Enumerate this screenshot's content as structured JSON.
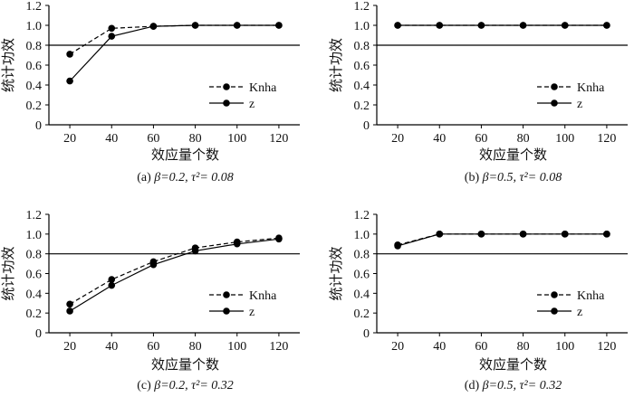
{
  "figure": {
    "x_categories_note": "effect size count",
    "panels_count": 4
  },
  "chart_data": [
    {
      "type": "line",
      "caption_prefix": "(a) ",
      "caption_beta": "β=0.2, ",
      "caption_tau": "τ²= 0.08",
      "xlabel": "效应量个数",
      "ylabel": "统计功效",
      "x": [
        20,
        40,
        60,
        80,
        100,
        120
      ],
      "xlim": [
        10,
        130
      ],
      "ylim": [
        0,
        1.2
      ],
      "yticks": [
        "0",
        "0.2",
        "0.4",
        "0.6",
        "0.8",
        "1.0",
        "1.2"
      ],
      "xticks": [
        "20",
        "40",
        "60",
        "80",
        "100",
        "120"
      ],
      "reference_line": 0.8,
      "legend_position": "lower-right",
      "series": [
        {
          "name": "Knha",
          "style": "dashed",
          "values": [
            0.71,
            0.97,
            0.99,
            1.0,
            1.0,
            1.0
          ]
        },
        {
          "name": "z",
          "style": "solid",
          "values": [
            0.44,
            0.89,
            0.99,
            1.0,
            1.0,
            1.0
          ]
        }
      ]
    },
    {
      "type": "line",
      "caption_prefix": "(b) ",
      "caption_beta": "β=0.5, ",
      "caption_tau": "τ²= 0.08",
      "xlabel": "效应量个数",
      "ylabel": "统计功效",
      "x": [
        20,
        40,
        60,
        80,
        100,
        120
      ],
      "xlim": [
        10,
        130
      ],
      "ylim": [
        0,
        1.2
      ],
      "yticks": [
        "0",
        "0.2",
        "0.4",
        "0.6",
        "0.8",
        "1.0",
        "1.2"
      ],
      "xticks": [
        "20",
        "40",
        "60",
        "80",
        "100",
        "120"
      ],
      "reference_line": 0.8,
      "legend_position": "lower-right",
      "series": [
        {
          "name": "Knha",
          "style": "dashed",
          "values": [
            1.0,
            1.0,
            1.0,
            1.0,
            1.0,
            1.0
          ]
        },
        {
          "name": "z",
          "style": "solid",
          "values": [
            1.0,
            1.0,
            1.0,
            1.0,
            1.0,
            1.0
          ]
        }
      ]
    },
    {
      "type": "line",
      "caption_prefix": "(c) ",
      "caption_beta": "β=0.2, ",
      "caption_tau": "τ²= 0.32",
      "xlabel": "效应量个数",
      "ylabel": "统计功效",
      "x": [
        20,
        40,
        60,
        80,
        100,
        120
      ],
      "xlim": [
        10,
        130
      ],
      "ylim": [
        0,
        1.2
      ],
      "yticks": [
        "0",
        "0.2",
        "0.4",
        "0.6",
        "0.8",
        "1.0",
        "1.2"
      ],
      "xticks": [
        "20",
        "40",
        "60",
        "80",
        "100",
        "120"
      ],
      "reference_line": 0.8,
      "legend_position": "lower-right",
      "series": [
        {
          "name": "Knha",
          "style": "dashed",
          "values": [
            0.29,
            0.54,
            0.72,
            0.86,
            0.92,
            0.96
          ]
        },
        {
          "name": "z",
          "style": "solid",
          "values": [
            0.22,
            0.48,
            0.69,
            0.83,
            0.9,
            0.95
          ]
        }
      ]
    },
    {
      "type": "line",
      "caption_prefix": "(d) ",
      "caption_beta": "β=0.5, ",
      "caption_tau": "τ²= 0.32",
      "xlabel": "效应量个数",
      "ylabel": "统计功效",
      "x": [
        20,
        40,
        60,
        80,
        100,
        120
      ],
      "xlim": [
        10,
        130
      ],
      "ylim": [
        0,
        1.2
      ],
      "yticks": [
        "0",
        "0.2",
        "0.4",
        "0.6",
        "0.8",
        "1.0",
        "1.2"
      ],
      "xticks": [
        "20",
        "40",
        "60",
        "80",
        "100",
        "120"
      ],
      "reference_line": 0.8,
      "legend_position": "lower-right",
      "series": [
        {
          "name": "Knha",
          "style": "dashed",
          "values": [
            0.89,
            1.0,
            1.0,
            1.0,
            1.0,
            1.0
          ]
        },
        {
          "name": "z",
          "style": "solid",
          "values": [
            0.88,
            1.0,
            1.0,
            1.0,
            1.0,
            1.0
          ]
        }
      ]
    }
  ]
}
